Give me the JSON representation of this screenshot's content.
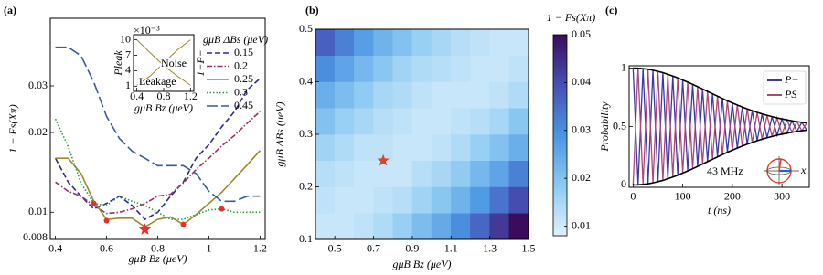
{
  "chart_data": [
    {
      "type": "line",
      "panel_label": "(a)",
      "x": [
        0.4,
        0.45,
        0.5,
        0.55,
        0.6,
        0.65,
        0.7,
        0.75,
        0.8,
        0.85,
        0.9,
        0.95,
        1,
        1.05,
        1.1,
        1.15,
        1.2
      ],
      "xlim": [
        0.38,
        1.22
      ],
      "xticks": [
        0.4,
        0.6,
        0.8,
        1,
        1.2
      ],
      "ylim": [
        0.0079,
        0.054
      ],
      "yticks": [
        0.008,
        0.01,
        0.02,
        0.03
      ],
      "log_y": true,
      "xlabel": "gμB Bz (μeV)",
      "ylabel": "1 − Fs(Xπ)",
      "legend_title": "gμB ΔBs (μeV)",
      "legend": "upper right",
      "series": [
        {
          "name": "0.15",
          "color": "#2b2d8c",
          "style": "dashed",
          "values": [
            0.016,
            0.013,
            0.0115,
            0.0103,
            0.0108,
            0.0115,
            0.0106,
            0.0094,
            0.01,
            0.0115,
            0.013,
            0.016,
            0.018,
            0.021,
            0.024,
            0.029,
            0.032
          ]
        },
        {
          "name": "0.2",
          "color": "#9b2f6b",
          "style": "dashdot",
          "values": [
            0.013,
            0.012,
            0.0115,
            0.0106,
            0.0099,
            0.01,
            0.0103,
            0.0108,
            0.0115,
            0.0117,
            0.0129,
            0.0145,
            0.016,
            0.0178,
            0.0195,
            0.0217,
            0.024
          ]
        },
        {
          "name": "0.25",
          "color": "#9a8a2e",
          "style": "solid",
          "values": [
            0.016,
            0.016,
            0.014,
            0.011,
            0.0094,
            0.0095,
            0.0095,
            0.0088,
            0.0094,
            0.0096,
            0.009,
            0.0098,
            0.0108,
            0.0119,
            0.0134,
            0.0151,
            0.0171
          ]
        },
        {
          "name": "0.3",
          "color": "#2f9a3a",
          "style": "dotted",
          "values": [
            0.0225,
            0.0177,
            0.0129,
            0.0108,
            0.0106,
            0.0115,
            0.011,
            0.0106,
            0.01,
            0.0094,
            0.0094,
            0.0098,
            0.0102,
            0.0103,
            0.01,
            0.01,
            0.01
          ]
        },
        {
          "name": "0.45",
          "color": "#3a5a9a",
          "style": "longdash",
          "values": [
            0.042,
            0.042,
            0.039,
            0.031,
            0.023,
            0.019,
            0.017,
            0.016,
            0.015,
            0.015,
            0.015,
            0.014,
            0.012,
            0.011,
            0.011,
            0.0115,
            0.0115
          ]
        }
      ],
      "markers": {
        "color": "#e8302a",
        "x": [
          0.55,
          0.6,
          0.9,
          1.05
        ],
        "y": [
          0.0108,
          0.0093,
          0.009,
          0.0103
        ]
      },
      "star": {
        "color": "#e8302a",
        "x": 0.75,
        "y": 0.0086
      }
    },
    {
      "type": "heatmap",
      "panel_label": "(b)",
      "x_edges": [
        0.4,
        0.5,
        0.6,
        0.7,
        0.8,
        0.9,
        1.0,
        1.1,
        1.2,
        1.3,
        1.4,
        1.5
      ],
      "y_edges": [
        0.1,
        0.15,
        0.2,
        0.25,
        0.3,
        0.35,
        0.4,
        0.45,
        0.5
      ],
      "z": [
        [
          0.011,
          0.011,
          0.012,
          0.014,
          0.017,
          0.021,
          0.025,
          0.03,
          0.036,
          0.043,
          0.05
        ],
        [
          0.012,
          0.011,
          0.011,
          0.012,
          0.013,
          0.016,
          0.019,
          0.023,
          0.028,
          0.034,
          0.04
        ],
        [
          0.013,
          0.012,
          0.011,
          0.011,
          0.011,
          0.013,
          0.015,
          0.018,
          0.022,
          0.026,
          0.032
        ],
        [
          0.016,
          0.014,
          0.012,
          0.012,
          0.011,
          0.011,
          0.012,
          0.014,
          0.017,
          0.02,
          0.024
        ],
        [
          0.02,
          0.017,
          0.015,
          0.013,
          0.012,
          0.011,
          0.011,
          0.012,
          0.013,
          0.015,
          0.019
        ],
        [
          0.024,
          0.021,
          0.018,
          0.015,
          0.014,
          0.012,
          0.011,
          0.011,
          0.011,
          0.012,
          0.014
        ],
        [
          0.03,
          0.026,
          0.022,
          0.019,
          0.016,
          0.014,
          0.013,
          0.012,
          0.011,
          0.011,
          0.012
        ],
        [
          0.037,
          0.032,
          0.027,
          0.023,
          0.02,
          0.017,
          0.015,
          0.013,
          0.012,
          0.011,
          0.011
        ]
      ],
      "xlim": [
        0.4,
        1.5
      ],
      "xticks": [
        0.5,
        0.7,
        0.9,
        1.1,
        1.3,
        1.5
      ],
      "ylim": [
        0.1,
        0.5
      ],
      "yticks": [
        0.1,
        0.2,
        0.3,
        0.4,
        0.5
      ],
      "xlabel": "gμB Bz (μeV)",
      "ylabel": "gμB ΔBs (μeV)",
      "colorbar_label": "1 − Fs(Xπ)",
      "zlim": [
        0.008,
        0.05
      ],
      "zticks": [
        0.01,
        0.02,
        0.03,
        0.04,
        0.05
      ],
      "colormap": [
        "#dff1fc",
        "#8ccaf2",
        "#4b95e2",
        "#4750b5",
        "#3a0c5c"
      ],
      "star": {
        "color": "#d9442e",
        "x": 0.75,
        "y": 0.25
      }
    },
    {
      "type": "line",
      "panel_label": "(c)",
      "x": [
        0,
        10,
        20,
        30,
        40,
        50,
        60,
        70,
        80,
        90,
        100,
        110,
        120,
        130,
        140,
        150,
        160,
        170,
        180,
        190,
        200,
        210,
        220,
        230,
        240,
        250,
        260,
        270,
        280,
        290,
        300,
        310,
        320,
        330,
        340,
        350
      ],
      "xlim": [
        -8,
        355
      ],
      "xticks": [
        0,
        100,
        200,
        300
      ],
      "ylim": [
        -0.02,
        1.02
      ],
      "yticks": [
        0,
        0.5,
        1
      ],
      "xlabel": "t (ns)",
      "ylabel": "Probability",
      "legend": "upper right",
      "series": [
        {
          "name": "P−",
          "color": "#3a3aa0",
          "style": "solid",
          "values": [
            1,
            0.001,
            0.995,
            0.01,
            0.982,
            0.028,
            0.961,
            0.053,
            0.932,
            0.084,
            0.898,
            0.12,
            0.861,
            0.159,
            0.821,
            0.2,
            0.78,
            0.24,
            0.74,
            0.28,
            0.702,
            0.316,
            0.667,
            0.349,
            0.636,
            0.379,
            0.608,
            0.404,
            0.585,
            0.426,
            0.565,
            0.443,
            0.549,
            0.458,
            0.536,
            0.469
          ]
        },
        {
          "name": "PS",
          "color": "#b0457a",
          "style": "solid",
          "values": [
            0,
            0.999,
            0.005,
            0.99,
            0.018,
            0.972,
            0.039,
            0.947,
            0.068,
            0.916,
            0.102,
            0.88,
            0.139,
            0.841,
            0.179,
            0.8,
            0.22,
            0.76,
            0.26,
            0.72,
            0.298,
            0.684,
            0.333,
            0.651,
            0.364,
            0.621,
            0.392,
            0.596,
            0.415,
            0.574,
            0.435,
            0.557,
            0.451,
            0.542,
            0.464,
            0.531
          ]
        }
      ],
      "envelope": {
        "color": "#000000",
        "upper": [
          1,
          0.999,
          0.995,
          0.99,
          0.982,
          0.972,
          0.961,
          0.947,
          0.932,
          0.916,
          0.898,
          0.88,
          0.861,
          0.841,
          0.821,
          0.8,
          0.78,
          0.76,
          0.74,
          0.72,
          0.702,
          0.684,
          0.667,
          0.651,
          0.636,
          0.621,
          0.608,
          0.596,
          0.585,
          0.574,
          0.565,
          0.557,
          0.549,
          0.542,
          0.536,
          0.531
        ],
        "lower": [
          0,
          0.001,
          0.005,
          0.01,
          0.018,
          0.028,
          0.039,
          0.053,
          0.068,
          0.084,
          0.102,
          0.12,
          0.139,
          0.159,
          0.179,
          0.2,
          0.22,
          0.24,
          0.26,
          0.28,
          0.298,
          0.316,
          0.333,
          0.349,
          0.364,
          0.379,
          0.392,
          0.404,
          0.415,
          0.426,
          0.435,
          0.443,
          0.451,
          0.458,
          0.464,
          0.469
        ]
      },
      "annotation": "43 MHz",
      "icon_label": "x"
    },
    {
      "type": "line",
      "x": [
        0.4,
        0.6,
        0.8,
        1,
        1.2
      ],
      "xlim": [
        0.35,
        1.25
      ],
      "xticks": [
        0.4,
        0.8,
        1.2
      ],
      "ylim": [
        0,
        11
      ],
      "yticks": [
        1,
        4,
        7,
        10
      ],
      "xlabel": "gμB Bz (μeV)",
      "ylabel": "Pleak",
      "y2label": "1−P−",
      "scale_label": "×10⁻³",
      "series": [
        {
          "name": "Leakage",
          "color": "#9a8a2e",
          "style": "solid",
          "values": [
            1.2,
            3,
            5.5,
            8,
            10
          ]
        },
        {
          "name": "Noise",
          "color": "#9a8a2e",
          "style": "solid",
          "values": [
            10,
            7.5,
            5,
            3,
            1.2
          ]
        }
      ]
    }
  ]
}
